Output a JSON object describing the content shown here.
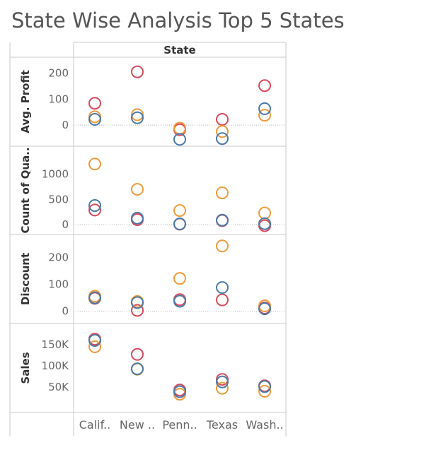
{
  "title": "State Wise Analysis Top 5 States",
  "column_header": "State",
  "colors": {
    "series_a": "#d94a5c",
    "series_b": "#f09a3a",
    "series_c": "#4a7aa8",
    "border": "#c8c8c8",
    "zero_line": "#b5b5b5"
  },
  "chart_data": {
    "type": "scatter",
    "grid": false,
    "categories": [
      "Calif..",
      "New ..",
      "Penn..",
      "Texas",
      "Wash.."
    ],
    "panels": [
      {
        "label": "Avg. Profit",
        "ticks": [
          0,
          100,
          200
        ],
        "tick_labels": [
          "0",
          "100",
          "200"
        ],
        "ylim": [
          -65,
          245
        ],
        "series": [
          {
            "values": [
              84,
              205,
              -18,
              22,
              152
            ]
          },
          {
            "values": [
              32,
              40,
              -12,
              -25,
              38
            ]
          },
          {
            "values": [
              22,
              28,
              -55,
              -52,
              63
            ]
          }
        ]
      },
      {
        "label": "Count of Qua..",
        "ticks": [
          0,
          500,
          1000
        ],
        "tick_labels": [
          "0",
          "500",
          "1000"
        ],
        "ylim": [
          -110,
          1470
        ],
        "series": [
          {
            "values": [
              290,
              100,
              10,
              80,
              -20
            ]
          },
          {
            "values": [
              1200,
              700,
              280,
              630,
              230
            ]
          },
          {
            "values": [
              380,
              130,
              15,
              90,
              20
            ]
          }
        ]
      },
      {
        "label": "Discount",
        "ticks": [
          0,
          100,
          200
        ],
        "tick_labels": [
          "0",
          "100",
          "200"
        ],
        "ylim": [
          -30,
          270
        ],
        "series": [
          {
            "values": [
              48,
              3,
              43,
              42,
              12
            ]
          },
          {
            "values": [
              56,
              36,
              122,
              243,
              20
            ]
          },
          {
            "values": [
              50,
              32,
              37,
              88,
              9
            ]
          }
        ]
      },
      {
        "label": "Sales",
        "ticks": [
          50000,
          100000,
          150000
        ],
        "tick_labels": [
          "50K",
          "100K",
          "150K"
        ],
        "ylim": [
          0,
          190000
        ],
        "series": [
          {
            "values": [
              163000,
              127000,
              43000,
              68000,
              53000
            ]
          },
          {
            "values": [
              145000,
              92000,
              33000,
              47000,
              40000
            ]
          },
          {
            "values": [
              160000,
              93000,
              39000,
              62000,
              51000
            ]
          }
        ]
      }
    ]
  }
}
